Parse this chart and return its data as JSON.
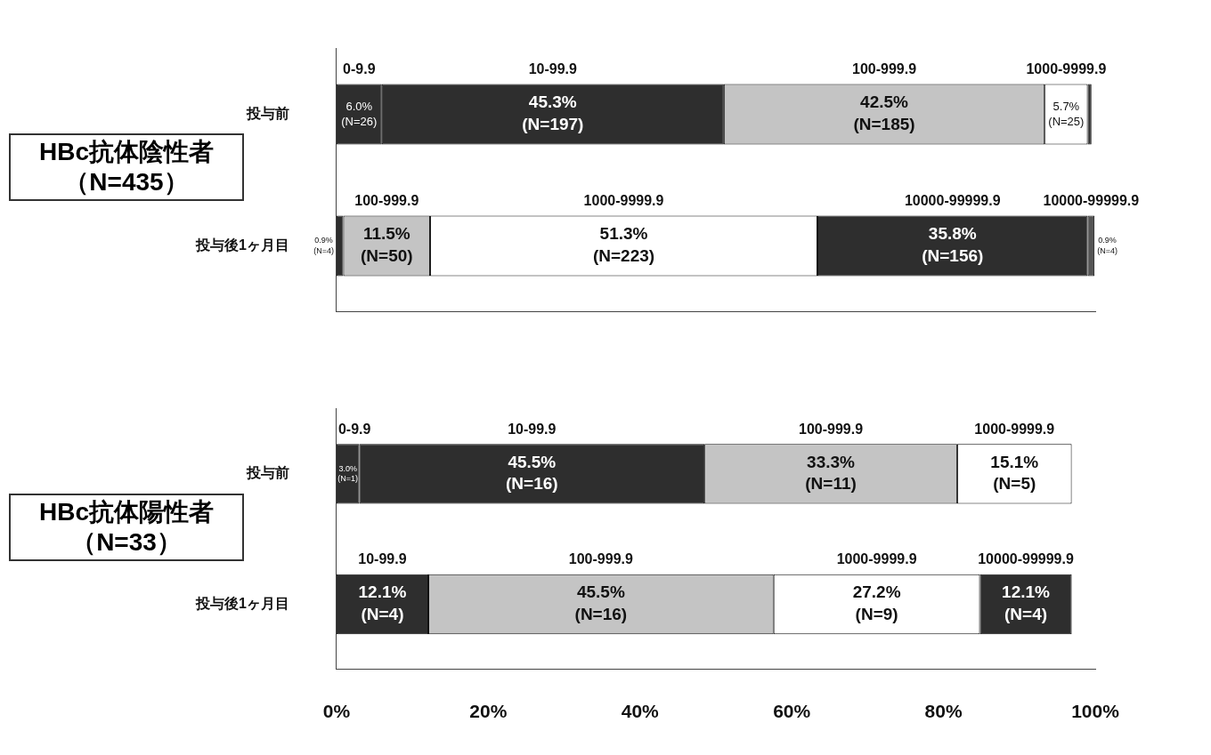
{
  "chart_data": [
    {
      "type": "bar",
      "orientation": "horizontal",
      "stacked": true,
      "title": "HBc抗体陰性者",
      "subtitle": "（N=435）",
      "categories": [
        "投与前",
        "投与後1ヶ月目"
      ],
      "xlim": [
        0,
        100.5
      ],
      "tick_labels": "y",
      "grid": false,
      "legend": false,
      "series": [
        {
          "values": [
            6.0,
            0.9
          ],
          "colors": [
            "#2e2e2e",
            "#2e2e2e"
          ],
          "value_labels": [
            "6.0%\n(N=26)",
            "0.9%\n(N=4)"
          ]
        },
        {
          "values": [
            45.3,
            11.5
          ],
          "colors": [
            "#2e2e2e",
            "#c4c4c4"
          ],
          "value_labels": [
            "45.3%\n(N=197)",
            "11.5%\n(N=50)"
          ]
        },
        {
          "values": [
            42.5,
            51.3
          ],
          "colors": [
            "#c4c4c4",
            "#ffffff"
          ],
          "value_labels": [
            "42.5%\n(N=185)",
            "51.3%\n(N=223)"
          ]
        },
        {
          "values": [
            5.7,
            35.8
          ],
          "colors": [
            "#ffffff",
            "#2e2e2e"
          ],
          "value_labels": [
            "5.7%\n(N=25)",
            "35.8%\n(N=156)"
          ]
        },
        {
          "values": [
            0.5,
            0.9
          ],
          "colors": [
            "#2e2e2e",
            "#555555"
          ],
          "value_labels": [
            null,
            "0.9%\n(N=4)"
          ]
        }
      ],
      "annotations": [
        "0-9.9",
        "10-99.9",
        "100-999.9",
        "1000-9999.9",
        "100-999.9",
        "1000-9999.9",
        "10000-99999.9",
        "10000-99999.9"
      ]
    },
    {
      "type": "bar",
      "orientation": "horizontal",
      "stacked": true,
      "title": "HBc抗体陽性者",
      "subtitle": "（N=33）",
      "categories": [
        "投与前",
        "投与後1ヶ月目"
      ],
      "xlim": [
        0,
        100
      ],
      "xticks": [
        {
          "value": 0,
          "label": "0%"
        },
        {
          "value": 20,
          "label": "20%"
        },
        {
          "value": 40,
          "label": "40%"
        },
        {
          "value": 60,
          "label": "60%"
        },
        {
          "value": 80,
          "label": "80%"
        },
        {
          "value": 100,
          "label": "100%"
        }
      ],
      "grid": false,
      "legend": false,
      "series": [
        {
          "values": [
            3.0,
            12.1
          ],
          "colors": [
            "#2e2e2e",
            "#2e2e2e"
          ],
          "value_labels": [
            "3.0%\n(N=1)",
            "12.1%\n(N=4)"
          ]
        },
        {
          "values": [
            45.5,
            45.5
          ],
          "colors": [
            "#2e2e2e",
            "#c4c4c4"
          ],
          "value_labels": [
            "45.5%\n(N=16)",
            "45.5%\n(N=16)"
          ]
        },
        {
          "values": [
            33.3,
            27.2
          ],
          "colors": [
            "#c4c4c4",
            "#ffffff"
          ],
          "value_labels": [
            "33.3%\n(N=11)",
            "27.2%\n(N=9)"
          ]
        },
        {
          "values": [
            15.1,
            12.1
          ],
          "colors": [
            "#ffffff",
            "#2e2e2e"
          ],
          "value_labels": [
            "15.1%\n(N=5)",
            "12.1%\n(N=4)"
          ]
        }
      ],
      "annotations": [
        "0-9.9",
        "10-99.9",
        "100-999.9",
        "1000-9999.9",
        "10-99.9",
        "100-999.9",
        "1000-9999.9",
        "10000-99999.9"
      ]
    }
  ]
}
